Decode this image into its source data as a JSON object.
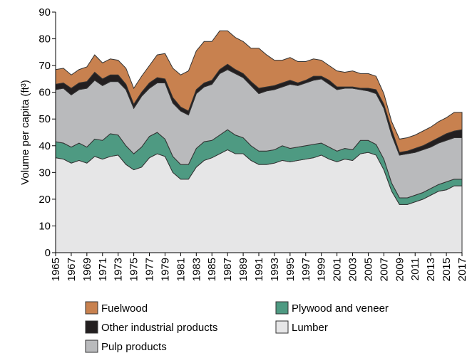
{
  "chart_data": {
    "type": "stacked_area",
    "y_label": "Volume per capita (ft³)",
    "x": [
      1965,
      1966,
      1967,
      1968,
      1969,
      1970,
      1971,
      1972,
      1973,
      1974,
      1975,
      1976,
      1977,
      1978,
      1979,
      1980,
      1981,
      1982,
      1983,
      1984,
      1985,
      1986,
      1987,
      1988,
      1989,
      1990,
      1991,
      1992,
      1993,
      1994,
      1995,
      1996,
      1997,
      1998,
      1999,
      2000,
      2001,
      2002,
      2003,
      2004,
      2005,
      2006,
      2007,
      2008,
      2009,
      2010,
      2011,
      2012,
      2013,
      2014,
      2015,
      2016,
      2017
    ],
    "xlim": [
      1965,
      2017
    ],
    "xticks": [
      1965,
      1967,
      1969,
      1971,
      1973,
      1975,
      1977,
      1979,
      1981,
      1983,
      1985,
      1987,
      1989,
      1991,
      1993,
      1995,
      1997,
      1999,
      2001,
      2003,
      2005,
      2007,
      2009,
      2011,
      2013,
      2015,
      2017
    ],
    "ylim": [
      0,
      90
    ],
    "yticks": [
      0,
      10,
      20,
      30,
      40,
      50,
      60,
      70,
      80,
      90
    ],
    "series": [
      {
        "name": "Lumber",
        "color": "#e6e6e7",
        "values": [
          35.5,
          35,
          33.5,
          34.5,
          33.5,
          36,
          35,
          36,
          36.5,
          33,
          31,
          32,
          35.5,
          37,
          36,
          30,
          27.5,
          27.5,
          32,
          34.5,
          35.5,
          37,
          38.5,
          37,
          37,
          34.5,
          33,
          33,
          33.5,
          34.5,
          34,
          34.5,
          35,
          35.5,
          36.5,
          35,
          34,
          35,
          34.5,
          37,
          37.5,
          36.5,
          31,
          23,
          18,
          18,
          19,
          20,
          21.5,
          23,
          23.5,
          25,
          25
        ]
      },
      {
        "name": "Plywood and veneer",
        "color": "#4e9a82",
        "values": [
          6,
          6,
          6,
          6.5,
          6,
          6.5,
          7,
          8.5,
          7.5,
          7,
          6,
          7.5,
          8,
          8,
          6.5,
          6,
          5.5,
          5.5,
          7,
          7,
          6.5,
          7,
          7.5,
          7,
          6,
          5.5,
          5,
          5,
          5,
          5.5,
          5,
          5,
          5,
          5,
          4.5,
          4.5,
          4,
          4,
          4,
          5,
          4.5,
          4,
          4,
          3,
          2.5,
          2.5,
          2.5,
          2.5,
          2.5,
          2.5,
          3,
          2.5,
          2.5
        ]
      },
      {
        "name": "Pulp products",
        "color": "#b9babc",
        "values": [
          19.5,
          20.5,
          19.5,
          20,
          22,
          22,
          20.5,
          19.5,
          20,
          21,
          17,
          19,
          18,
          18.5,
          21,
          20,
          20,
          18.5,
          20.5,
          20.5,
          21,
          23,
          22.5,
          23,
          22.5,
          22.5,
          21.5,
          22.5,
          22.5,
          22,
          24,
          23,
          23.5,
          24,
          24,
          23.5,
          23,
          22.5,
          23,
          19,
          18.5,
          19,
          19,
          18,
          16,
          16.5,
          16,
          16,
          15.5,
          15.5,
          15.5,
          15.5,
          15.5
        ]
      },
      {
        "name": "Other industrial products",
        "color": "#231f20",
        "values": [
          2,
          2,
          2.5,
          2.5,
          2.5,
          3,
          2.5,
          2.5,
          2.5,
          2,
          1.5,
          1.5,
          2,
          2,
          1.5,
          2,
          1.5,
          1.5,
          1.5,
          1.5,
          1.5,
          1.5,
          2,
          1.5,
          1.5,
          1.5,
          2,
          1.5,
          1.5,
          1.5,
          1.5,
          1,
          1,
          1.5,
          1,
          1.5,
          1,
          0.5,
          0.5,
          0.5,
          1,
          1.5,
          1.5,
          2,
          1,
          1,
          1.5,
          1.5,
          2,
          2,
          2.5,
          2.5,
          3
        ]
      },
      {
        "name": "Fuelwood",
        "color": "#c8814f",
        "values": [
          5.5,
          5.5,
          5,
          5,
          5.5,
          6.5,
          6,
          6,
          5.5,
          6,
          6,
          6,
          6.5,
          8.5,
          9.5,
          11,
          12,
          15,
          14.5,
          15.5,
          14.5,
          14.5,
          12.5,
          12,
          12,
          12.5,
          15,
          12,
          9.5,
          8.5,
          8.5,
          8,
          7,
          6.5,
          6,
          5.5,
          6,
          5.5,
          6,
          5.5,
          5.5,
          5,
          4,
          3,
          5,
          5,
          5,
          5.5,
          5.5,
          6,
          6,
          7,
          6.5
        ]
      }
    ]
  }
}
